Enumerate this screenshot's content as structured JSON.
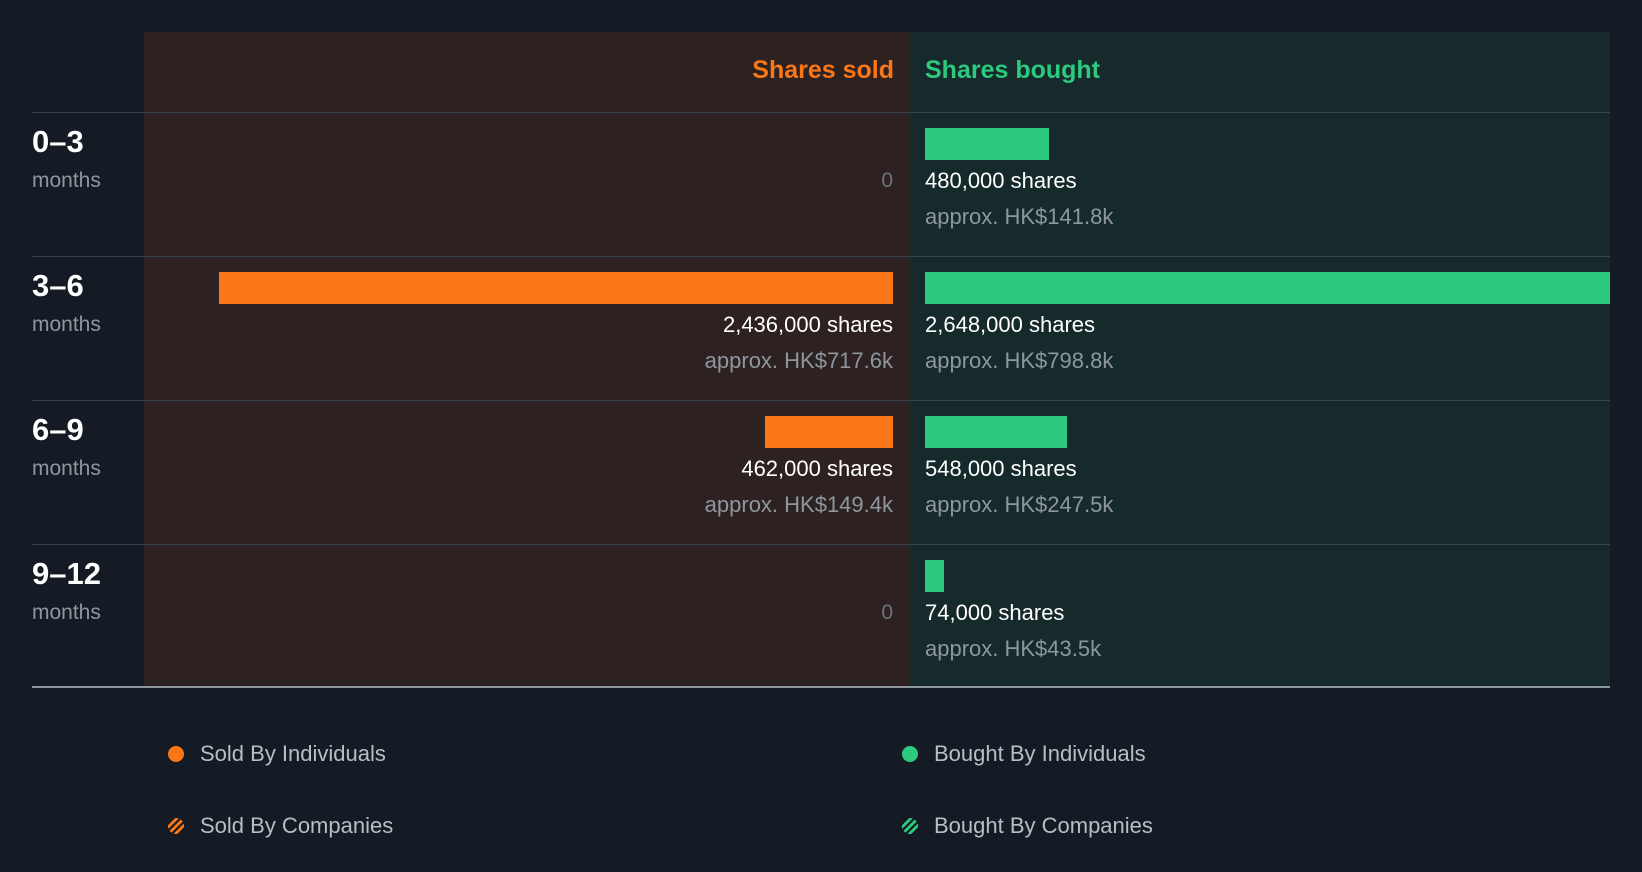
{
  "header": {
    "sold_label": "Shares sold",
    "bought_label": "Shares bought"
  },
  "colors": {
    "sold": "#f97716",
    "bought": "#2dc97f"
  },
  "chart_data": {
    "type": "bar",
    "orientation": "horizontal-diverging",
    "categories": [
      "0–3",
      "3–6",
      "6–9",
      "9–12"
    ],
    "category_unit": "months",
    "series": [
      {
        "name": "Shares sold",
        "values": [
          0,
          2436000,
          462000,
          0
        ],
        "shares_text": [
          "0",
          "2,436,000 shares",
          "462,000 shares",
          "0"
        ],
        "approx_text": [
          "",
          "approx. HK$717.6k",
          "approx. HK$149.4k",
          ""
        ]
      },
      {
        "name": "Shares bought",
        "values": [
          480000,
          2648000,
          548000,
          74000
        ],
        "shares_text": [
          "480,000 shares",
          "2,648,000 shares",
          "548,000 shares",
          "74,000 shares"
        ],
        "approx_text": [
          "approx. HK$141.8k",
          "approx. HK$798.8k",
          "approx. HK$247.5k",
          "approx. HK$43.5k"
        ]
      }
    ],
    "max_value": 2648000
  },
  "legend": [
    {
      "label": "Sold By Individuals",
      "icon": "dot-solid",
      "color": "#f97716"
    },
    {
      "label": "Bought By Individuals",
      "icon": "dot-solid",
      "color": "#2dc97f"
    },
    {
      "label": "Sold By Companies",
      "icon": "dot-striped",
      "color": "#f97716"
    },
    {
      "label": "Bought By Companies",
      "icon": "dot-striped",
      "color": "#2dc97f"
    }
  ]
}
